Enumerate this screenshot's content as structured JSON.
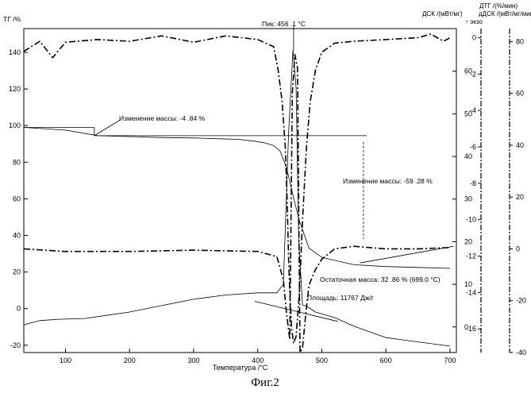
{
  "caption": "Фиг.2",
  "chart_data": {
    "type": "line",
    "title": "",
    "xlabel": "Температура /°C",
    "xlim": [
      35,
      710
    ],
    "x_ticks": [
      100,
      200,
      300,
      400,
      500,
      600,
      700
    ],
    "axes": {
      "tg": {
        "label": "ТГ /%",
        "lim": [
          -24,
          153
        ],
        "ticks": [
          -20,
          0,
          20,
          40,
          60,
          80,
          100,
          120,
          140
        ],
        "tick_labels": [
          "-20",
          "0",
          "20",
          "40",
          "60",
          "80",
          "100",
          "120",
          "140"
        ]
      },
      "dsc": {
        "label": "ДСК /(мВт/мг)",
        "exo": "↑ экзо",
        "lim": [
          -6,
          70
        ],
        "ticks": [
          0,
          10,
          20,
          30,
          40,
          50,
          60
        ],
        "tick_labels": [
          "0",
          "10",
          "20",
          "30",
          "40",
          "50",
          "60"
        ]
      },
      "dtg": {
        "label": "ДТГ /(%/мин)",
        "lim": [
          -17.3,
          0.5
        ],
        "ticks": [
          0,
          -2,
          -4,
          -6,
          -8,
          -10,
          -12,
          -14,
          -16
        ],
        "tick_labels": [
          "0",
          "-2",
          "-4",
          "-6",
          "-8",
          "-10",
          "-12",
          "-14",
          "-16"
        ]
      },
      "ddsc": {
        "label": "дДСК /(мВт/мг/мин)",
        "lim": [
          -40,
          85
        ],
        "ticks": [
          80,
          60,
          40,
          20,
          0,
          -20,
          -40
        ],
        "tick_labels": [
          "80",
          "60",
          "40",
          "20",
          "0",
          "-20",
          "-40"
        ]
      }
    },
    "series": [
      {
        "role": "tg",
        "axis": "tg",
        "style": "solid",
        "x": [
          35,
          100,
          150,
          200,
          250,
          300,
          340,
          370,
          395,
          412,
          425,
          435,
          445,
          455,
          465,
          480,
          500,
          550,
          600,
          650,
          700
        ],
        "y": [
          99,
          97.5,
          94.5,
          94,
          93.5,
          93.2,
          92.8,
          92.5,
          91.5,
          90.5,
          89,
          86,
          77,
          62,
          48,
          33,
          28,
          24,
          23,
          22.5,
          22
        ]
      },
      {
        "role": "dsc",
        "axis": "dsc",
        "style": "solid",
        "x": [
          35,
          60,
          90,
          130,
          200,
          250,
          300,
          350,
          400,
          430,
          440,
          448,
          455,
          460,
          464,
          470,
          475,
          490,
          520,
          550,
          600,
          650,
          700
        ],
        "y": [
          0.5,
          1.5,
          1.8,
          2.0,
          3.5,
          5.0,
          6.5,
          7.5,
          8.0,
          8.0,
          10,
          45,
          65,
          56,
          20,
          5,
          5,
          3.5,
          2.2,
          0.2,
          -2.5,
          -3.5,
          -4.5
        ]
      },
      {
        "role": "ddsc",
        "axis": "ddsc",
        "style": "dashdot",
        "x": [
          35,
          100,
          200,
          300,
          400,
          430,
          440,
          445,
          450,
          454,
          458,
          462,
          466,
          470,
          475,
          480,
          490,
          500,
          520,
          550,
          600,
          650,
          700
        ],
        "y": [
          0,
          -1,
          -1,
          -0.5,
          -1,
          -3,
          -12,
          -25,
          -35,
          60,
          75,
          70,
          -40,
          -38,
          -25,
          -14,
          -8,
          -4,
          0,
          1,
          0,
          0,
          0.5
        ]
      },
      {
        "role": "dtg",
        "axis": "dtg",
        "style": "dashdot",
        "x": [
          35,
          60,
          80,
          100,
          150,
          200,
          250,
          300,
          350,
          400,
          425,
          432,
          438,
          443,
          446,
          448,
          450,
          453,
          456,
          460,
          465,
          470,
          476,
          482,
          490,
          500,
          520,
          550,
          600,
          650,
          670,
          690,
          700
        ],
        "y": [
          -0.75,
          -0.2,
          -1.1,
          -0.25,
          -0.1,
          -0.2,
          0.1,
          -0.25,
          0.1,
          -0.1,
          -0.5,
          -1.8,
          -3.5,
          -6,
          -9,
          -12,
          -14,
          -16,
          -16.8,
          -16.4,
          -14,
          -10,
          -6,
          -3.5,
          -1.8,
          -0.8,
          -0.3,
          -0.2,
          -0.1,
          0,
          0.2,
          -0.2,
          0
        ]
      }
    ],
    "annotations": {
      "peak": "Пик: 456 .1 °C",
      "mass1": "Изменение массы: -4   .84 %",
      "mass2": "Изменение массы: -59   .28 %",
      "residual": "Остаточная масса: 32   .86 % (699.0 °C)",
      "area": "Площадь: 11767 Дж/г"
    }
  }
}
